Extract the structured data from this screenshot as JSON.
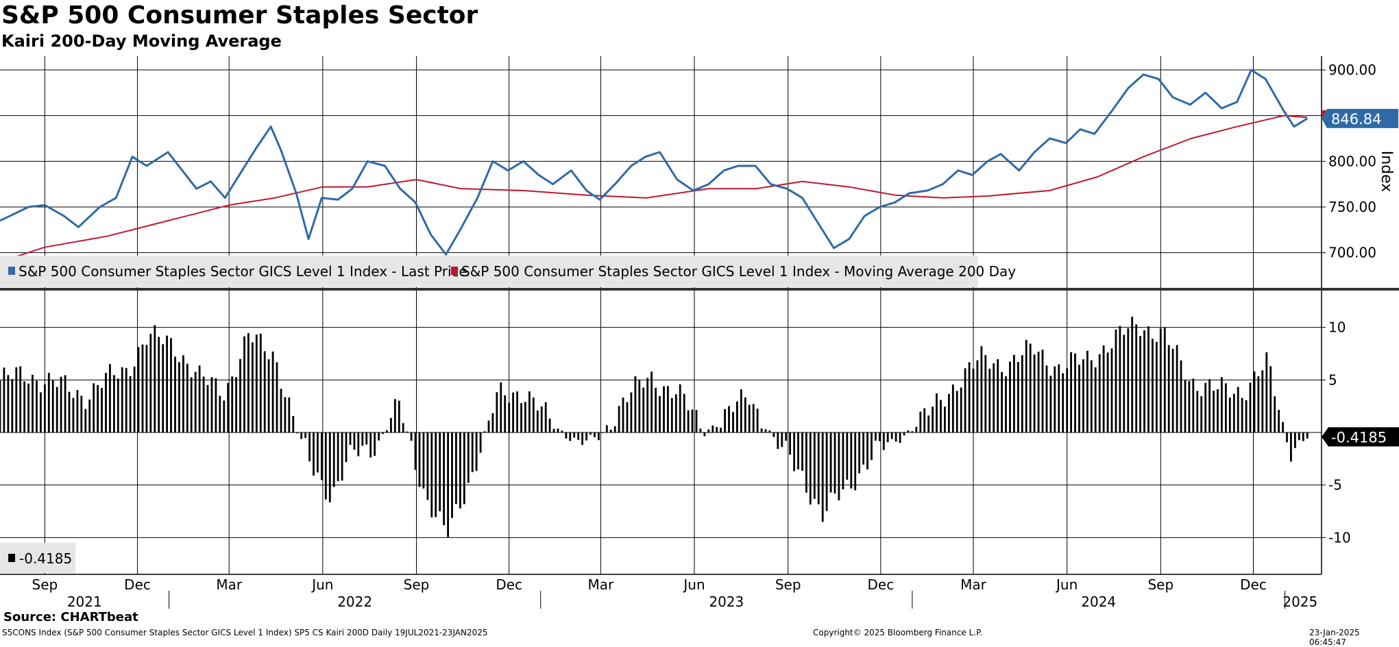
{
  "header": {
    "title": "S&P 500 Consumer Staples Sector",
    "subtitle": "Kairi 200-Day Moving Average"
  },
  "footer": {
    "source": "Source: CHARTbeat",
    "ticker_line": "S5CONS Index (S&P 500 Consumer Staples Sector GICS Level 1 Index) SP5 CS Kairi 200D  Daily 19JUL2021-23JAN2025",
    "copyright": "Copyright© 2025 Bloomberg Finance L.P.",
    "timestamp": "23-Jan-2025 06:45:47"
  },
  "colors": {
    "price": "#2f6aa6",
    "moving_average": "#c0172c",
    "kairi_bars": "#000000",
    "grid": "#000000"
  },
  "chart_data": [
    {
      "type": "line",
      "panel": "top",
      "ylabel": "Index",
      "y_axis_side": "right",
      "ylim": [
        660,
        915
      ],
      "y_ticks": [
        "700.00",
        "750.00",
        "800.00",
        "850.00",
        "900.00"
      ],
      "grid": true,
      "legend": "bottom-left",
      "last_value_label": "846.84",
      "series": [
        {
          "name": "S&P 500 Consumer Staples Sector GICS Level 1 Index - Last Price",
          "color": "#2f6aa6",
          "x": [
            "2021-07-19",
            "2021-08-01",
            "2021-08-16",
            "2021-09-01",
            "2021-09-20",
            "2021-10-04",
            "2021-10-25",
            "2021-11-10",
            "2021-11-26",
            "2021-12-10",
            "2021-12-31",
            "2022-01-14",
            "2022-01-28",
            "2022-02-11",
            "2022-02-25",
            "2022-03-11",
            "2022-03-28",
            "2022-04-11",
            "2022-04-21",
            "2022-05-06",
            "2022-05-18",
            "2022-05-31",
            "2022-06-16",
            "2022-06-30",
            "2022-07-15",
            "2022-08-01",
            "2022-08-16",
            "2022-08-31",
            "2022-09-15",
            "2022-09-30",
            "2022-10-14",
            "2022-10-31",
            "2022-11-15",
            "2022-11-30",
            "2022-12-15",
            "2022-12-30",
            "2023-01-13",
            "2023-01-31",
            "2023-02-15",
            "2023-02-28",
            "2023-03-15",
            "2023-03-31",
            "2023-04-14",
            "2023-04-28",
            "2023-05-15",
            "2023-05-31",
            "2023-06-15",
            "2023-06-30",
            "2023-07-14",
            "2023-07-31",
            "2023-08-15",
            "2023-08-31",
            "2023-09-15",
            "2023-09-29",
            "2023-10-16",
            "2023-10-31",
            "2023-11-15",
            "2023-11-30",
            "2023-12-15",
            "2023-12-29",
            "2024-01-16",
            "2024-01-31",
            "2024-02-15",
            "2024-02-29",
            "2024-03-15",
            "2024-03-28",
            "2024-04-15",
            "2024-04-30",
            "2024-05-15",
            "2024-05-31",
            "2024-06-14",
            "2024-06-28",
            "2024-07-15",
            "2024-07-31",
            "2024-08-15",
            "2024-08-30",
            "2024-09-13",
            "2024-09-30",
            "2024-10-15",
            "2024-10-31",
            "2024-11-15",
            "2024-11-29",
            "2024-12-13",
            "2024-12-31",
            "2025-01-10",
            "2025-01-23"
          ],
          "values": [
            735,
            742,
            750,
            752,
            740,
            728,
            750,
            760,
            805,
            795,
            810,
            790,
            770,
            778,
            760,
            785,
            815,
            838,
            812,
            765,
            715,
            760,
            758,
            770,
            800,
            795,
            770,
            755,
            720,
            698,
            725,
            760,
            800,
            790,
            800,
            785,
            775,
            790,
            768,
            758,
            775,
            795,
            805,
            810,
            780,
            768,
            775,
            790,
            795,
            795,
            775,
            770,
            760,
            735,
            705,
            715,
            740,
            750,
            755,
            765,
            768,
            775,
            790,
            785,
            800,
            808,
            790,
            810,
            825,
            820,
            835,
            830,
            855,
            880,
            895,
            890,
            870,
            862,
            875,
            858,
            865,
            900,
            890,
            855,
            838,
            846.84
          ]
        },
        {
          "name": "S&P 500 Consumer Staples Sector GICS Level 1 Index - Moving Average 200 Day",
          "color": "#c0172c",
          "x": [
            "2021-07-19",
            "2021-09-01",
            "2021-11-01",
            "2021-12-31",
            "2022-03-01",
            "2022-04-15",
            "2022-06-01",
            "2022-07-15",
            "2022-09-01",
            "2022-10-15",
            "2022-12-15",
            "2023-02-15",
            "2023-04-15",
            "2023-06-15",
            "2023-08-01",
            "2023-09-15",
            "2023-10-31",
            "2023-12-15",
            "2024-02-01",
            "2024-03-15",
            "2024-05-15",
            "2024-07-01",
            "2024-08-15",
            "2024-10-01",
            "2024-11-15",
            "2024-12-31",
            "2025-01-23"
          ],
          "values": [
            690,
            706,
            718,
            735,
            752,
            760,
            772,
            772,
            780,
            770,
            768,
            763,
            760,
            770,
            770,
            778,
            772,
            763,
            760,
            762,
            768,
            783,
            805,
            825,
            838,
            850,
            848
          ]
        }
      ]
    },
    {
      "type": "bar",
      "panel": "bottom",
      "y_axis_side": "right",
      "ylim": [
        -13.5,
        13.5
      ],
      "y_ticks": [
        "-10",
        "-5",
        "5",
        "10"
      ],
      "grid": true,
      "legend": "bottom-left",
      "last_value_label": "-0.4185",
      "series": [
        {
          "name": "-0.4185",
          "color": "#000000",
          "x": [
            "2021-07-19",
            "2021-08-15",
            "2021-09-15",
            "2021-10-10",
            "2021-11-01",
            "2021-11-20",
            "2021-12-10",
            "2022-01-05",
            "2022-02-01",
            "2022-02-25",
            "2022-03-20",
            "2022-04-15",
            "2022-05-05",
            "2022-05-20",
            "2022-06-10",
            "2022-07-01",
            "2022-07-25",
            "2022-08-15",
            "2022-09-10",
            "2022-10-01",
            "2022-10-25",
            "2022-11-20",
            "2022-12-15",
            "2023-01-15",
            "2023-02-10",
            "2023-03-01",
            "2023-03-25",
            "2023-04-20",
            "2023-05-15",
            "2023-06-10",
            "2023-07-01",
            "2023-07-25",
            "2023-08-20",
            "2023-09-15",
            "2023-10-05",
            "2023-10-30",
            "2023-11-25",
            "2023-12-20",
            "2024-01-20",
            "2024-02-15",
            "2024-03-10",
            "2024-04-05",
            "2024-05-01",
            "2024-05-25",
            "2024-06-20",
            "2024-07-15",
            "2024-08-10",
            "2024-09-05",
            "2024-10-01",
            "2024-10-25",
            "2024-11-20",
            "2024-12-15",
            "2025-01-05",
            "2025-01-23"
          ],
          "values": [
            5,
            5.5,
            4.5,
            3.5,
            5,
            6,
            9,
            8.5,
            5,
            4,
            9,
            7.5,
            0.5,
            -3,
            -6,
            -2,
            -1,
            2.5,
            -6,
            -10,
            -4,
            3.5,
            4,
            0.5,
            -1,
            -0.5,
            3.5,
            5,
            4,
            0,
            1.5,
            3.5,
            -1,
            -4,
            -8,
            -5,
            -2,
            -0.5,
            2,
            5,
            7,
            6.5,
            8,
            6,
            7,
            8.5,
            10.5,
            9,
            5,
            4,
            4,
            6.5,
            -1.5,
            -0.4185
          ]
        }
      ]
    }
  ],
  "time_axis": {
    "months": [
      {
        "label": "Sep",
        "date": "2021-09-01"
      },
      {
        "label": "Dec",
        "date": "2021-12-01"
      },
      {
        "label": "Mar",
        "date": "2022-03-01"
      },
      {
        "label": "Jun",
        "date": "2022-06-01"
      },
      {
        "label": "Sep",
        "date": "2022-09-01"
      },
      {
        "label": "Dec",
        "date": "2022-12-01"
      },
      {
        "label": "Mar",
        "date": "2023-03-01"
      },
      {
        "label": "Jun",
        "date": "2023-06-01"
      },
      {
        "label": "Sep",
        "date": "2023-09-01"
      },
      {
        "label": "Dec",
        "date": "2023-12-01"
      },
      {
        "label": "Mar",
        "date": "2024-03-01"
      },
      {
        "label": "Jun",
        "date": "2024-06-01"
      },
      {
        "label": "Sep",
        "date": "2024-09-01"
      },
      {
        "label": "Dec",
        "date": "2024-12-01"
      }
    ],
    "years": [
      {
        "label": "2021",
        "start": "2021-07-19",
        "end": "2022-01-01"
      },
      {
        "label": "2022",
        "start": "2022-01-01",
        "end": "2023-01-01"
      },
      {
        "label": "2023",
        "start": "2023-01-01",
        "end": "2024-01-01"
      },
      {
        "label": "2024",
        "start": "2024-01-01",
        "end": "2025-01-01"
      },
      {
        "label": "2025",
        "start": "2025-01-01",
        "end": "2025-01-31"
      }
    ],
    "domain": [
      "2021-07-19",
      "2025-02-06"
    ]
  }
}
